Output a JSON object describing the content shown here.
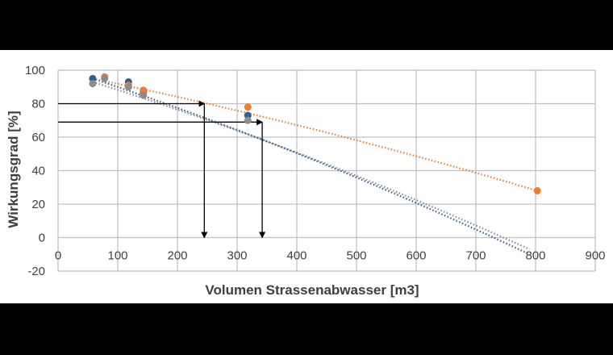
{
  "chart_data": {
    "type": "scatter",
    "title": "",
    "xlabel": "Volumen Strassenabwasser [m3]",
    "ylabel": "Wirkungsgrad [%]",
    "xlim": [
      0,
      900
    ],
    "ylim": [
      -20,
      100
    ],
    "x_ticks": [
      0,
      100,
      200,
      300,
      400,
      500,
      600,
      700,
      800,
      900
    ],
    "y_ticks": [
      -20,
      0,
      20,
      40,
      60,
      80,
      100
    ],
    "grid": true,
    "legend": "none",
    "series": [
      {
        "name": "blue",
        "color": "#2e5f9a",
        "points": [
          [
            58,
            95
          ],
          [
            118,
            93
          ],
          [
            143,
            87
          ],
          [
            318,
            73
          ]
        ],
        "trendline": {
          "style": "dotted",
          "from": [
            58,
            95
          ],
          "to": [
            790,
            -10
          ]
        }
      },
      {
        "name": "orange",
        "color": "#ed7d31",
        "points": [
          [
            78,
            96
          ],
          [
            118,
            91
          ],
          [
            143,
            88
          ],
          [
            318,
            78
          ],
          [
            803,
            28
          ]
        ],
        "trendline": {
          "style": "dotted",
          "from": [
            58,
            95
          ],
          "to": [
            803,
            28
          ]
        }
      },
      {
        "name": "gray",
        "color": "#8c8c8c",
        "points": [
          [
            58,
            92
          ],
          [
            78,
            95
          ],
          [
            118,
            90
          ],
          [
            143,
            85
          ],
          [
            318,
            70
          ]
        ],
        "trendline": {
          "style": "dotted",
          "from": [
            58,
            93
          ],
          "to": [
            790,
            -7
          ]
        }
      }
    ],
    "annotations": [
      {
        "type": "arrow-path",
        "points": [
          [
            0,
            80
          ],
          [
            245,
            80
          ],
          [
            245,
            0
          ]
        ]
      },
      {
        "type": "arrow-path",
        "points": [
          [
            0,
            69
          ],
          [
            342,
            69
          ],
          [
            342,
            0
          ]
        ]
      }
    ]
  },
  "labels": {
    "xlabel": "Volumen Strassenabwasser [m3]",
    "ylabel": "Wirkungsgrad [%]",
    "x_ticks": [
      "0",
      "100",
      "200",
      "300",
      "400",
      "500",
      "600",
      "700",
      "800",
      "900"
    ],
    "y_ticks": [
      "100",
      "80",
      "60",
      "40",
      "20",
      "0",
      "-20"
    ]
  }
}
